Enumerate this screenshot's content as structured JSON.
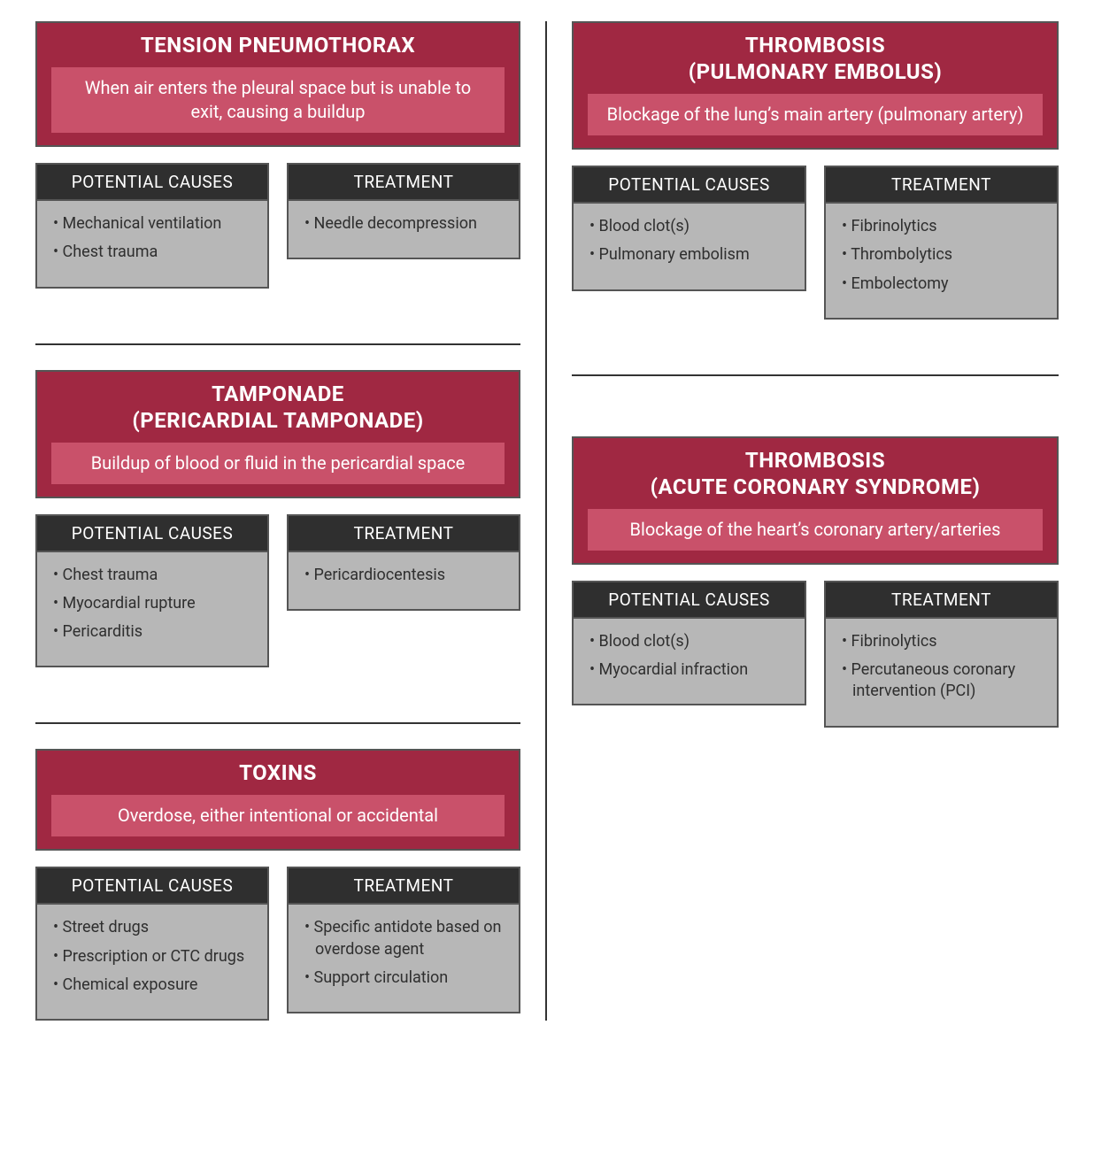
{
  "colors": {
    "title_bg": "#a02842",
    "desc_bg": "#c9516a",
    "subheader_bg": "#2f2f2f",
    "subbody_bg": "#b7b7b7",
    "border": "#555555",
    "divider": "#333333",
    "page_bg": "#ffffff",
    "title_text": "#ffffff",
    "body_text": "#2f2f2f"
  },
  "typography": {
    "title_fontsize_pt": 18,
    "desc_fontsize_pt": 15,
    "subheader_fontsize_pt": 14,
    "item_fontsize_pt": 13,
    "title_weight": 700
  },
  "layout": {
    "columns": 2,
    "card_order_left": [
      "tension_pneumothorax",
      "tamponade",
      "toxins"
    ],
    "card_order_right": [
      "thrombosis_pe",
      "thrombosis_acs"
    ]
  },
  "labels": {
    "potential_causes": "POTENTIAL CAUSES",
    "treatment": "TREATMENT"
  },
  "cards": {
    "tension_pneumothorax": {
      "title": "TENSION PNEUMOTHORAX",
      "description": "When air enters the pleural space but is unable to exit, causing a buildup",
      "causes": [
        "Mechanical ventilation",
        "Chest trauma"
      ],
      "treatment": [
        "Needle decompression"
      ]
    },
    "thrombosis_pe": {
      "title": "THROMBOSIS\n(PULMONARY EMBOLUS)",
      "description": "Blockage of the lung’s main artery (pulmonary artery)",
      "causes": [
        "Blood clot(s)",
        "Pulmonary embolism"
      ],
      "treatment": [
        "Fibrinolytics",
        "Thrombolytics",
        "Embolectomy"
      ]
    },
    "tamponade": {
      "title": "TAMPONADE\n(PERICARDIAL TAMPONADE)",
      "description": "Buildup of blood or fluid in the pericardial space",
      "causes": [
        "Chest trauma",
        "Myocardial rupture",
        "Pericarditis"
      ],
      "treatment": [
        "Pericardiocentesis"
      ]
    },
    "thrombosis_acs": {
      "title": "THROMBOSIS\n(ACUTE CORONARY SYNDROME)",
      "description": "Blockage of the heart’s coronary artery/arteries",
      "causes": [
        "Blood clot(s)",
        "Myocardial infraction"
      ],
      "treatment": [
        "Fibrinolytics",
        "Percutaneous coronary intervention (PCI)"
      ]
    },
    "toxins": {
      "title": "TOXINS",
      "description": "Overdose, either intentional or accidental",
      "causes": [
        "Street drugs",
        "Prescription or CTC drugs",
        "Chemical exposure"
      ],
      "treatment": [
        "Specific antidote based on overdose agent",
        "Support circulation"
      ]
    }
  }
}
